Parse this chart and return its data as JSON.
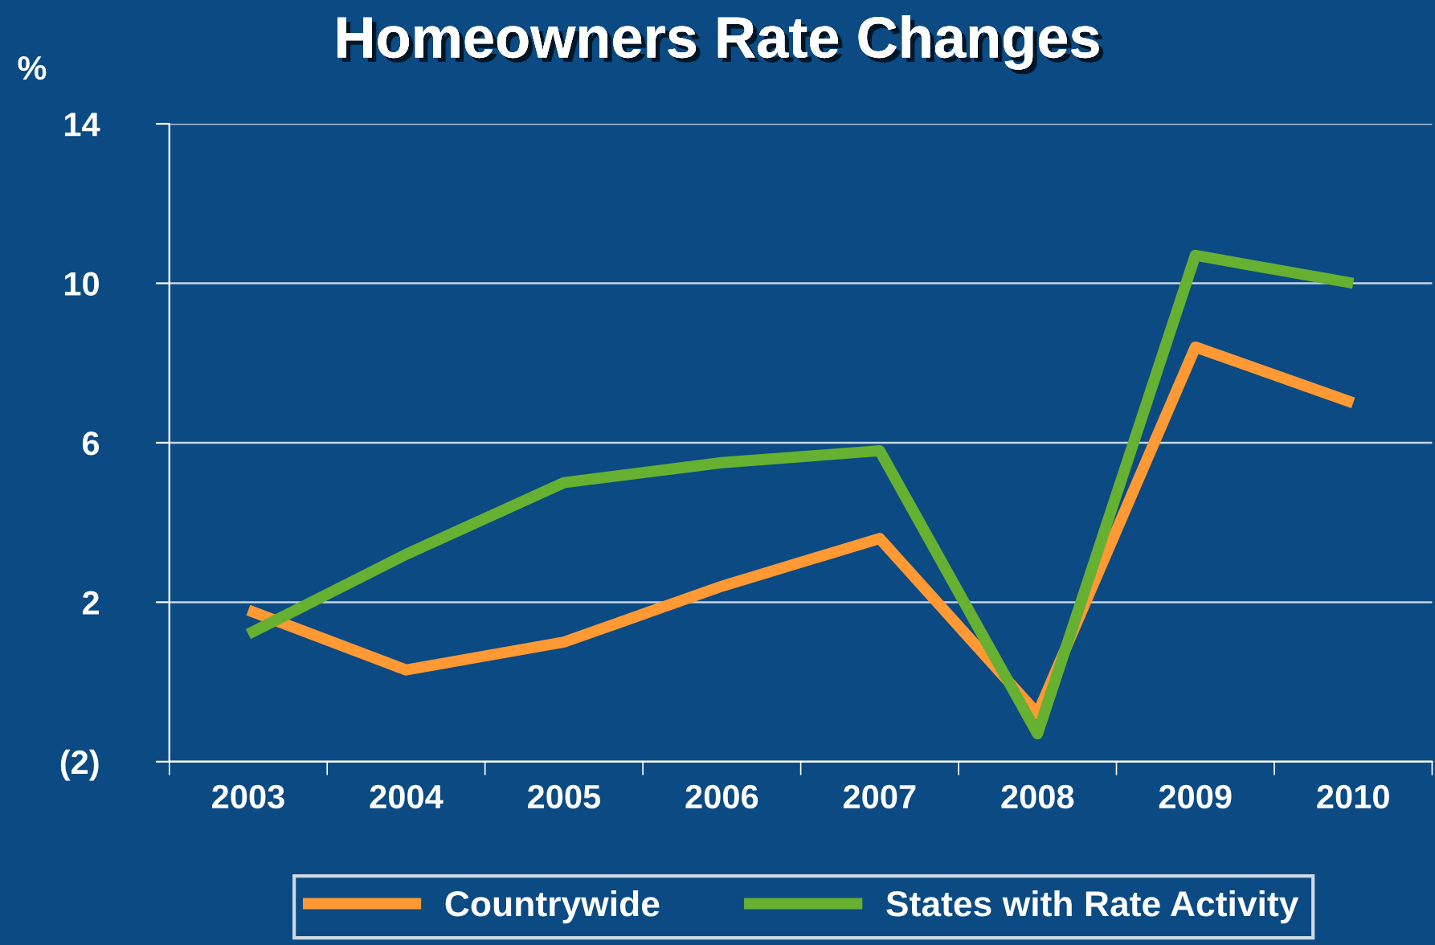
{
  "chart_data": {
    "type": "line",
    "title": "Homeowners Rate Changes",
    "ylabel": "%",
    "categories": [
      "2003",
      "2004",
      "2005",
      "2006",
      "2007",
      "2008",
      "2009",
      "2010"
    ],
    "series": [
      {
        "name": "Countrywide",
        "color": "#ff9933",
        "values": [
          1.8,
          0.3,
          1.0,
          2.4,
          3.6,
          -0.8,
          8.4,
          7.0
        ]
      },
      {
        "name": "States with Rate Activity",
        "color": "#66b032",
        "values": [
          1.2,
          3.2,
          5.0,
          5.5,
          5.8,
          -1.3,
          10.7,
          10.0
        ]
      }
    ],
    "ylim": [
      -2,
      14
    ],
    "yticks": [
      {
        "value": -2,
        "label": "(2)"
      },
      2,
      6,
      10,
      14
    ],
    "grid": "y",
    "legend": "bottom",
    "line_style": "solid",
    "marker": "none"
  }
}
